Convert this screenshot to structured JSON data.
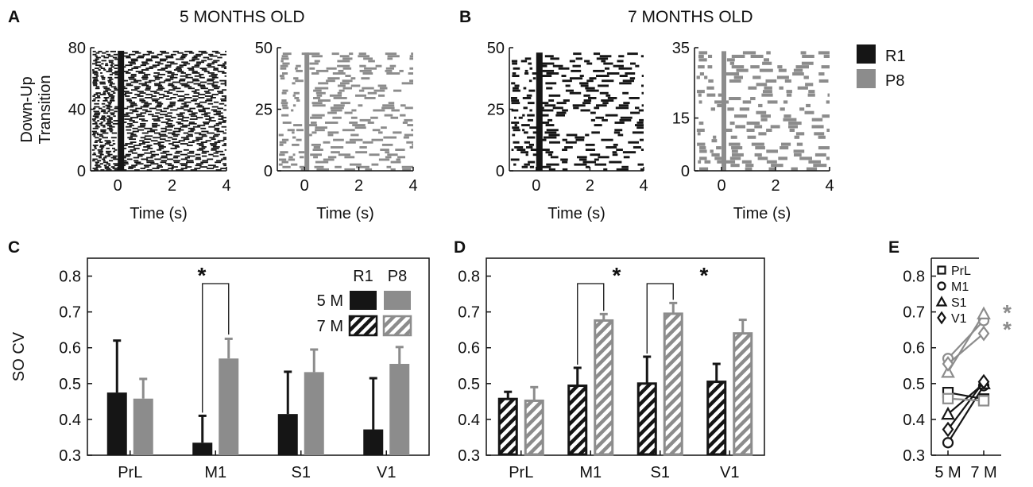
{
  "colors": {
    "r1": "#151515",
    "p8": "#8c8c8c",
    "axis": "#111111"
  },
  "panels": {
    "A": {
      "letter": "A",
      "title": "5 MONTHS OLD"
    },
    "B": {
      "letter": "B",
      "title": "7 MONTHS OLD"
    },
    "C": {
      "letter": "C"
    },
    "D": {
      "letter": "D"
    },
    "E": {
      "letter": "E"
    }
  },
  "raster_legend": [
    {
      "label": "R1",
      "color": "#151515"
    },
    {
      "label": "P8",
      "color": "#8c8c8c"
    }
  ],
  "raster_ylabel": [
    "Down-Up",
    "Transition"
  ],
  "bar_legend": {
    "group_headers": [
      "R1",
      "P8"
    ],
    "rows": [
      {
        "label": "5 M",
        "style": "solid"
      },
      {
        "label": "7 M",
        "style": "hatched"
      }
    ]
  },
  "star": "*",
  "chart_data": [
    {
      "id": "A-R1",
      "type": "raster",
      "series": "R1",
      "age": "5 months",
      "xlabel": "Time (s)",
      "xlim": [
        -1,
        4
      ],
      "xticks": [
        "0",
        "2",
        "4"
      ],
      "ylim": [
        0,
        80
      ],
      "yticks": [
        "0",
        "40",
        "80"
      ],
      "n_trials": 78,
      "oscillation_period_s": 0.45
    },
    {
      "id": "A-P8",
      "type": "raster",
      "series": "P8",
      "age": "5 months",
      "xlabel": "Time (s)",
      "xlim": [
        -1,
        4
      ],
      "xticks": [
        "0",
        "2",
        "4"
      ],
      "ylim": [
        0,
        50
      ],
      "yticks": [
        "0",
        "25",
        "50"
      ],
      "n_trials": 48
    },
    {
      "id": "B-R1",
      "type": "raster",
      "series": "R1",
      "age": "7 months",
      "xlabel": "Time (s)",
      "xlim": [
        -1,
        4
      ],
      "xticks": [
        "0",
        "2",
        "4"
      ],
      "ylim": [
        0,
        50
      ],
      "yticks": [
        "0",
        "25",
        "50"
      ],
      "n_trials": 48
    },
    {
      "id": "B-P8",
      "type": "raster",
      "series": "P8",
      "age": "7 months",
      "xlabel": "Time (s)",
      "xlim": [
        -1,
        4
      ],
      "xticks": [
        "0",
        "2",
        "4"
      ],
      "ylim": [
        0,
        35
      ],
      "yticks": [
        "0",
        "15",
        "35"
      ],
      "n_trials": 34
    },
    {
      "id": "C",
      "type": "bar",
      "ylabel": "SO CV",
      "ylim": [
        0.3,
        0.85
      ],
      "yticks": [
        "0.3",
        "0.4",
        "0.5",
        "0.6",
        "0.7",
        "0.8"
      ],
      "categories": [
        "PrL",
        "M1",
        "S1",
        "V1"
      ],
      "series": [
        {
          "name": "R1",
          "age": "5 M",
          "values": [
            0.475,
            0.335,
            0.415,
            0.372
          ],
          "errors": [
            0.145,
            0.075,
            0.118,
            0.143
          ]
        },
        {
          "name": "P8",
          "age": "5 M",
          "values": [
            0.458,
            0.57,
            0.532,
            0.555
          ],
          "errors": [
            0.055,
            0.055,
            0.063,
            0.047
          ]
        }
      ],
      "significance": [
        {
          "category": "M1",
          "label": "*"
        }
      ]
    },
    {
      "id": "D",
      "type": "bar",
      "ylim": [
        0.3,
        0.85
      ],
      "yticks": [
        "0.3",
        "0.4",
        "0.5",
        "0.6",
        "0.7",
        "0.8"
      ],
      "categories": [
        "PrL",
        "M1",
        "S1",
        "V1"
      ],
      "series": [
        {
          "name": "R1",
          "age": "7 M",
          "values": [
            0.457,
            0.494,
            0.5,
            0.505
          ],
          "errors": [
            0.02,
            0.05,
            0.075,
            0.05
          ]
        },
        {
          "name": "P8",
          "age": "7 M",
          "values": [
            0.452,
            0.676,
            0.695,
            0.64
          ],
          "errors": [
            0.038,
            0.018,
            0.03,
            0.038
          ]
        }
      ],
      "significance": [
        {
          "category": "M1",
          "label": "*"
        },
        {
          "category": "S1",
          "label": "*"
        }
      ]
    },
    {
      "id": "E",
      "type": "line",
      "ylim": [
        0.3,
        0.85
      ],
      "yticks": [
        "0.3",
        "0.4",
        "0.5",
        "0.6",
        "0.7",
        "0.8"
      ],
      "categories": [
        "5 M",
        "7 M"
      ],
      "series": [
        {
          "name": "PrL",
          "marker": "square",
          "group": "R1",
          "values": [
            0.475,
            0.457
          ]
        },
        {
          "name": "M1",
          "marker": "circle",
          "group": "R1",
          "values": [
            0.335,
            0.494
          ]
        },
        {
          "name": "S1",
          "marker": "triangle",
          "group": "R1",
          "values": [
            0.415,
            0.5
          ]
        },
        {
          "name": "V1",
          "marker": "diamond",
          "group": "R1",
          "values": [
            0.372,
            0.505
          ]
        },
        {
          "name": "PrL",
          "marker": "square",
          "group": "P8",
          "values": [
            0.458,
            0.452
          ]
        },
        {
          "name": "M1",
          "marker": "circle",
          "group": "P8",
          "values": [
            0.57,
            0.676
          ]
        },
        {
          "name": "S1",
          "marker": "triangle",
          "group": "P8",
          "values": [
            0.532,
            0.695
          ]
        },
        {
          "name": "V1",
          "marker": "diamond",
          "group": "P8",
          "values": [
            0.555,
            0.64
          ]
        }
      ],
      "legend": [
        "PrL",
        "M1",
        "S1",
        "V1"
      ],
      "significance_marks": [
        "*",
        "*"
      ]
    }
  ]
}
